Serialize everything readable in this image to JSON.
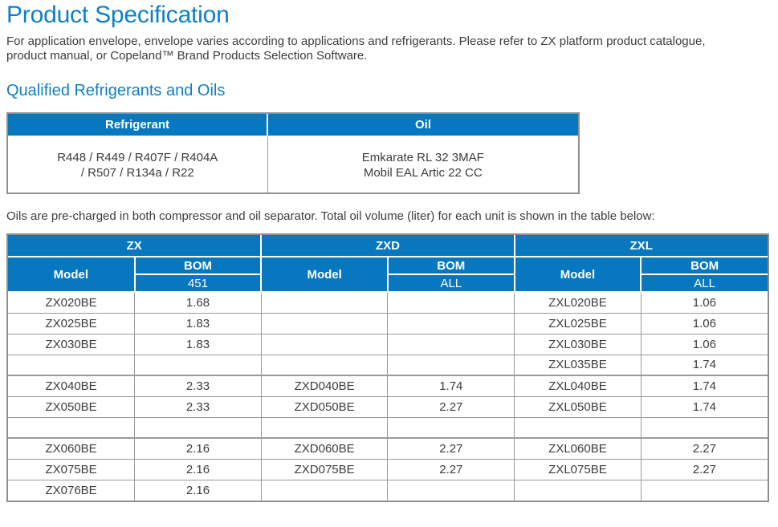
{
  "page": {
    "title": "Product Specification",
    "intro_line1": "For application envelope, envelope varies according to applications and refrigerants. Please refer to ZX platform product catalogue,",
    "intro_line2": "product manual, or Copeland™ Brand Products Selection Software.",
    "section_heading": "Qualified Refrigerants and Oils",
    "oil_note": "Oils are pre-charged in both compressor and oil separator. Total oil volume (liter) for each unit is shown in the table below:"
  },
  "colors": {
    "heading_blue": "#0d80c6",
    "table_header_blue": "#0778bf",
    "body_text": "#3c3c3c",
    "border_gray": "#9a9a9a"
  },
  "refrigerant_oil_table": {
    "headers": [
      "Refrigerant",
      "Oil"
    ],
    "refrigerant_lines": [
      "R448 / R449 / R407F / R404A",
      "/ R507 / R134a / R22"
    ],
    "oil_lines": [
      "Emkarate RL 32 3MAF",
      "Mobil EAL Artic 22 CC"
    ]
  },
  "oil_volume_table": {
    "groups": [
      "ZX",
      "ZXD",
      "ZXL"
    ],
    "model_header": "Model",
    "bom_header": "BOM",
    "bom_values": [
      "451",
      "ALL",
      "ALL"
    ],
    "rows": [
      {
        "cells": [
          "ZX020BE",
          "1.68",
          "",
          "",
          "ZXL020BE",
          "1.06"
        ]
      },
      {
        "cells": [
          "ZX025BE",
          "1.83",
          "",
          "",
          "ZXL025BE",
          "1.06"
        ]
      },
      {
        "cells": [
          "ZX030BE",
          "1.83",
          "",
          "",
          "ZXL030BE",
          "1.06"
        ]
      },
      {
        "cells": [
          "",
          "",
          "",
          "",
          "ZXL035BE",
          "1.74"
        ]
      },
      {
        "thick_top": true,
        "cells": [
          "ZX040BE",
          "2.33",
          "ZXD040BE",
          "1.74",
          "ZXL040BE",
          "1.74"
        ]
      },
      {
        "cells": [
          "ZX050BE",
          "2.33",
          "ZXD050BE",
          "2.27",
          "ZXL050BE",
          "1.74"
        ]
      },
      {
        "cells": [
          "",
          "",
          "",
          "",
          "",
          ""
        ]
      },
      {
        "thick_top": true,
        "cells": [
          "ZX060BE",
          "2.16",
          "ZXD060BE",
          "2.27",
          "ZXL060BE",
          "2.27"
        ]
      },
      {
        "cells": [
          "ZX075BE",
          "2.16",
          "ZXD075BE",
          "2.27",
          "ZXL075BE",
          "2.27"
        ]
      },
      {
        "cells": [
          "ZX076BE",
          "2.16",
          "",
          "",
          "",
          ""
        ]
      }
    ]
  }
}
